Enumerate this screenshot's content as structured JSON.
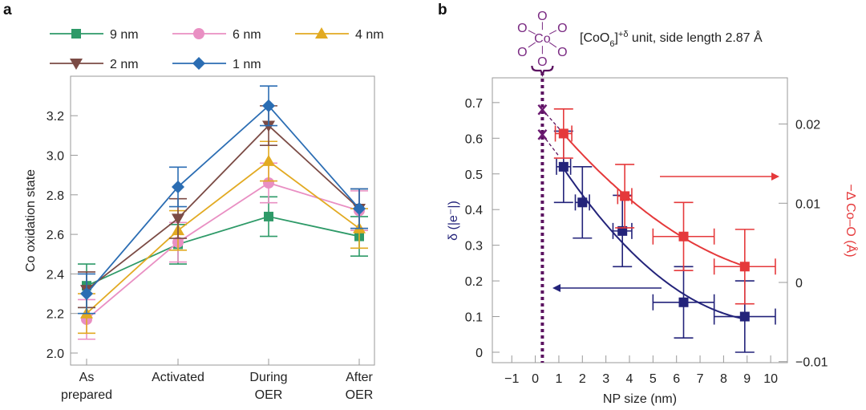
{
  "chart_data": [
    {
      "panel": "a",
      "type": "line",
      "xlabel": "",
      "ylabel": "Co oxidation state",
      "ylim": [
        2.0,
        3.35
      ],
      "yticks": [
        "2.0",
        "2.2",
        "2.4",
        "2.6",
        "2.8",
        "3.0",
        "3.2"
      ],
      "categories": [
        [
          "As",
          "prepared"
        ],
        [
          "Activated"
        ],
        [
          "During",
          "OER"
        ],
        [
          "After",
          "OER"
        ]
      ],
      "legend_position": "top",
      "series": [
        {
          "name": "9 nm",
          "marker": "square",
          "color": "#2e9a68",
          "values": [
            2.34,
            2.55,
            2.69,
            2.59
          ],
          "errors": [
            0.11,
            0.1,
            0.1,
            0.1
          ]
        },
        {
          "name": "6 nm",
          "marker": "circle",
          "color": "#e98fc3",
          "values": [
            2.17,
            2.56,
            2.86,
            2.72
          ],
          "errors": [
            0.1,
            0.1,
            0.1,
            0.1
          ]
        },
        {
          "name": "4 nm",
          "marker": "triangle-up",
          "color": "#e2aa22",
          "values": [
            2.2,
            2.62,
            2.97,
            2.63
          ],
          "errors": [
            0.1,
            0.1,
            0.1,
            0.1
          ]
        },
        {
          "name": "2 nm",
          "marker": "triangle-down",
          "color": "#7b4b45",
          "values": [
            2.32,
            2.68,
            3.15,
            2.73
          ],
          "errors": [
            0.09,
            0.1,
            0.1,
            0.1
          ]
        },
        {
          "name": "1 nm",
          "marker": "diamond",
          "color": "#2b6db3",
          "values": [
            2.3,
            2.84,
            3.25,
            2.73
          ],
          "errors": [
            0.1,
            0.1,
            0.1,
            0.1
          ]
        }
      ]
    },
    {
      "panel": "b",
      "type": "scatter",
      "xlabel": "NP size (nm)",
      "ylabel_left": "δ (|e⁻|)",
      "ylabel_right": "−Δ Co–O (Å)",
      "xlim": [
        -1.7,
        10.8
      ],
      "ylim_left": [
        -0.03,
        0.77
      ],
      "ylim_right": [
        -0.01,
        0.026
      ],
      "xticks": [
        "−1",
        "0",
        "1",
        "2",
        "3",
        "4",
        "5",
        "6",
        "7",
        "8",
        "9",
        "10"
      ],
      "yticks_left": [
        "0",
        "0.1",
        "0.2",
        "0.3",
        "0.4",
        "0.5",
        "0.6",
        "0.7"
      ],
      "yticks_right": [
        "−0.01",
        "0",
        "0.01",
        "0.02"
      ],
      "annotation": "[CoO",
      "annotation_sub": "6",
      "annotation_sup": "]+δ",
      "annotation_rest": " unit, side length 2.87 Å",
      "molecule_center": "Co",
      "molecule_ligand": "O",
      "reference_x": 0.3,
      "extrapolated_points": [
        0.68,
        0.61
      ],
      "series": [
        {
          "name": "δ",
          "axis": "left",
          "color": "#23237a",
          "x": [
            1.2,
            2.0,
            3.7,
            6.3,
            8.9
          ],
          "y": [
            0.52,
            0.42,
            0.34,
            0.14,
            0.1
          ],
          "xerr": [
            0.3,
            0.3,
            0.4,
            1.3,
            1.3
          ],
          "yerr": [
            0.1,
            0.1,
            0.1,
            0.1,
            0.1
          ],
          "fit_arrow": "left"
        },
        {
          "name": "−Δ Co–O",
          "axis": "right",
          "color": "#e5393b",
          "x": [
            1.2,
            3.8,
            6.3,
            8.9
          ],
          "y": [
            0.0188,
            0.0109,
            0.0058,
            0.002
          ],
          "xerr": [
            0.35,
            0.3,
            1.3,
            1.3
          ],
          "yerr": [
            0.0031,
            0.004,
            0.0043,
            0.0047
          ],
          "fit_arrow": "right"
        }
      ]
    }
  ],
  "panel_labels": [
    "a",
    "b"
  ]
}
